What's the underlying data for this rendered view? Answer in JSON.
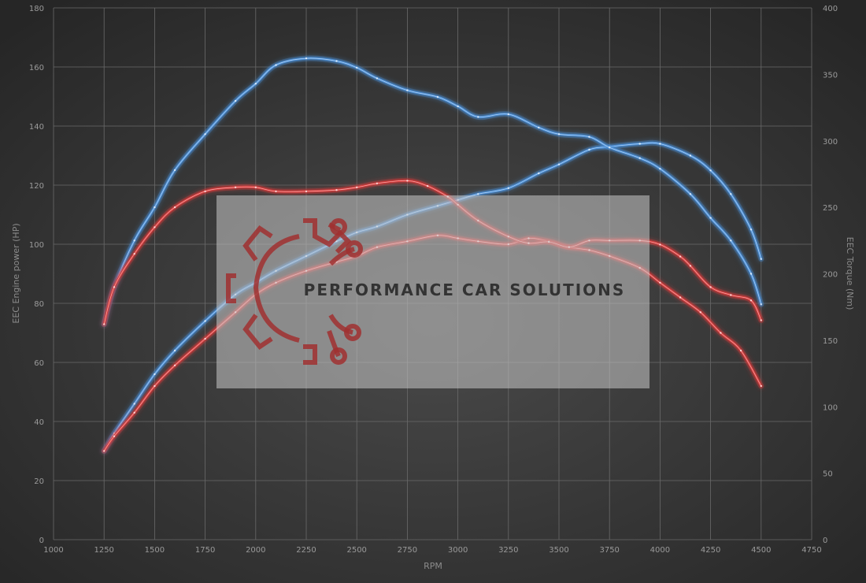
{
  "chart_data": {
    "type": "line",
    "xlabel": "RPM",
    "ylabel_left": "EEC Engine power (HP)",
    "ylabel_right": "EEC Torque (Nm)",
    "xlim": [
      1000,
      4750
    ],
    "ylim_left": [
      0,
      180
    ],
    "ylim_right": [
      0,
      400
    ],
    "x_ticks": [
      1000,
      1250,
      1500,
      1750,
      2000,
      2250,
      2500,
      2750,
      3000,
      3250,
      3500,
      3750,
      4000,
      4250,
      4500,
      4750
    ],
    "y_ticks_left": [
      0,
      20,
      40,
      60,
      80,
      100,
      120,
      140,
      160,
      180
    ],
    "y_ticks_right": [
      0,
      50,
      100,
      150,
      200,
      250,
      300,
      350,
      400
    ],
    "grid": true,
    "series": [
      {
        "axis": "left",
        "color": "#4a8fd8",
        "x": [
          1250,
          1300,
          1400,
          1500,
          1600,
          1750,
          1900,
          2000,
          2100,
          2250,
          2400,
          2500,
          2600,
          2750,
          2900,
          3000,
          3100,
          3250,
          3400,
          3500,
          3650,
          3750,
          3900,
          4000,
          4150,
          4250,
          4350,
          4450,
          4500
        ],
        "values": [
          30,
          36,
          46,
          56,
          64,
          74,
          83,
          87,
          91,
          96,
          101,
          104,
          106,
          110,
          113,
          115,
          117,
          119,
          124,
          127,
          132,
          133,
          134,
          134,
          130,
          125,
          117,
          105,
          95
        ]
      },
      {
        "axis": "right",
        "color": "#4a8fd8",
        "x": [
          1250,
          1300,
          1400,
          1500,
          1600,
          1750,
          1900,
          2000,
          2100,
          2250,
          2400,
          2500,
          2600,
          2750,
          2900,
          3000,
          3100,
          3250,
          3400,
          3500,
          3650,
          3750,
          3900,
          4000,
          4150,
          4250,
          4350,
          4450,
          4500
        ],
        "values": [
          162,
          190,
          225,
          250,
          278,
          305,
          330,
          343,
          357,
          362,
          360,
          355,
          347,
          338,
          333,
          326,
          318,
          320,
          310,
          305,
          303,
          295,
          287,
          279,
          260,
          242,
          225,
          200,
          177
        ]
      },
      {
        "axis": "left",
        "color": "#d83a3a",
        "x": [
          1250,
          1300,
          1400,
          1500,
          1600,
          1750,
          1900,
          2000,
          2100,
          2250,
          2400,
          2500,
          2600,
          2750,
          2900,
          3000,
          3100,
          3250,
          3350,
          3450,
          3550,
          3650,
          3750,
          3900,
          4000,
          4100,
          4200,
          4300,
          4400,
          4500
        ],
        "values": [
          30,
          35,
          43,
          52,
          59,
          68,
          77,
          83,
          87,
          91,
          94,
          96,
          99,
          101,
          103,
          102,
          101,
          100,
          102,
          101,
          99,
          98,
          96,
          92,
          87,
          82,
          77,
          70,
          64,
          52
        ]
      },
      {
        "axis": "right",
        "color": "#d83a3a",
        "x": [
          1250,
          1300,
          1400,
          1500,
          1600,
          1750,
          1900,
          2000,
          2100,
          2250,
          2400,
          2500,
          2600,
          2750,
          2850,
          2950,
          3000,
          3100,
          3250,
          3350,
          3450,
          3550,
          3650,
          3750,
          3900,
          4000,
          4100,
          4150,
          4250,
          4350,
          4450,
          4500
        ],
        "values": [
          162,
          190,
          215,
          235,
          250,
          262,
          265,
          265,
          262,
          262,
          263,
          265,
          268,
          270,
          266,
          258,
          252,
          240,
          228,
          223,
          224,
          220,
          225,
          225,
          225,
          222,
          213,
          206,
          190,
          184,
          180,
          165
        ]
      }
    ]
  },
  "watermark": {
    "text": "PERFORMANCE CAR SOLUTIONS"
  }
}
